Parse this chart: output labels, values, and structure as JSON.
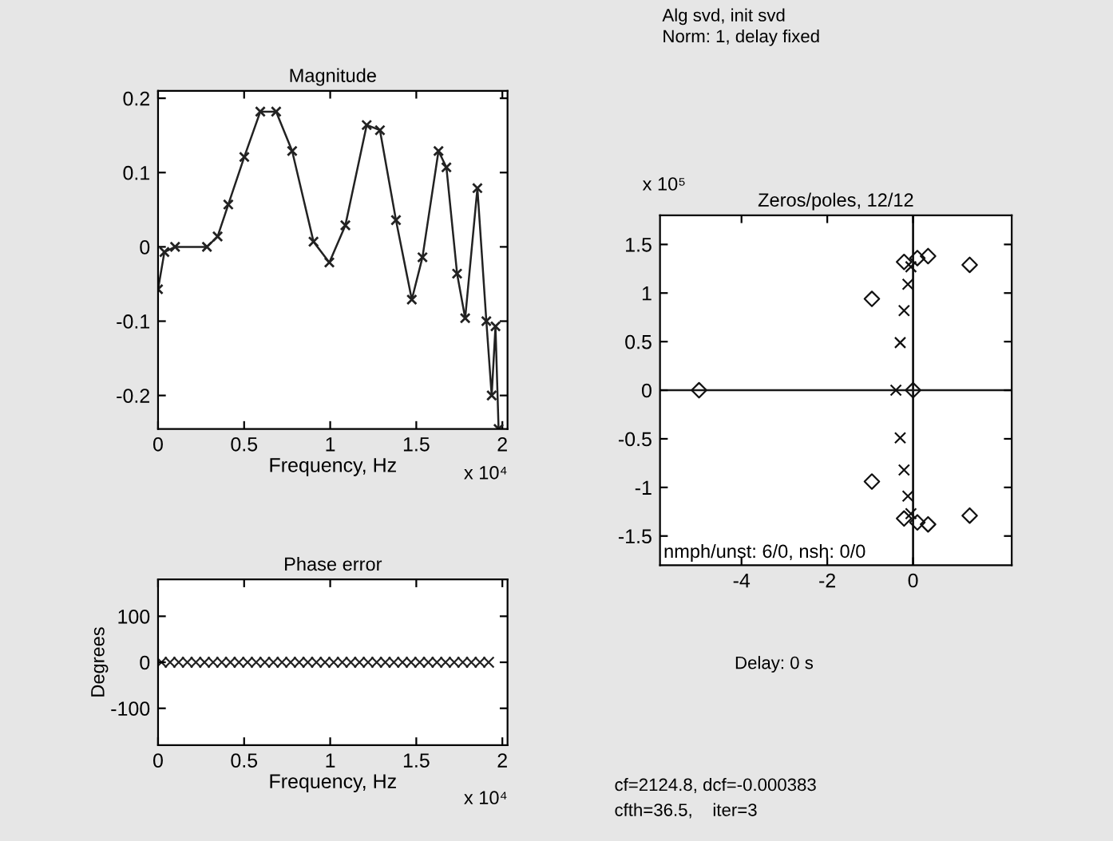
{
  "chart_data": [
    {
      "type": "line",
      "title": "Magnitude",
      "xlabel": "Frequency, Hz",
      "annotations": [
        "x 10⁴"
      ],
      "marker": "cross",
      "grid": false,
      "x": [
        0,
        0.037,
        0.099,
        0.284,
        0.346,
        0.408,
        0.501,
        0.594,
        0.686,
        0.779,
        0.903,
        0.995,
        1.088,
        1.212,
        1.289,
        1.382,
        1.474,
        1.536,
        1.629,
        1.675,
        1.737,
        1.784,
        1.855,
        1.907,
        1.938,
        1.96,
        1.978
      ],
      "series": [
        {
          "color": "#222222",
          "values": [
            -0.057,
            -0.007,
            0,
            0,
            0.014,
            0.057,
            0.121,
            0.182,
            0.182,
            0.129,
            0.007,
            -0.021,
            0.029,
            0.164,
            0.157,
            0.036,
            -0.071,
            -0.014,
            0.129,
            0.107,
            -0.036,
            -0.096,
            0.079,
            -0.1,
            -0.2,
            -0.107,
            -0.245
          ]
        }
      ],
      "xlim": [
        0,
        2.03
      ],
      "xticks": [
        0,
        0.5,
        1,
        1.5,
        2
      ],
      "ylim": [
        -0.245,
        0.21
      ],
      "yticks": [
        -0.2,
        -0.1,
        0,
        0.1,
        0.2
      ]
    },
    {
      "type": "scatter",
      "title": "Phase error",
      "xlabel": "Frequency, Hz",
      "ylabel": "Degrees",
      "annotations": [
        "x 10⁴"
      ],
      "marker": "cross",
      "grid": false,
      "x": [
        0.02,
        0.07,
        0.12,
        0.17,
        0.22,
        0.27,
        0.32,
        0.37,
        0.42,
        0.47,
        0.52,
        0.57,
        0.62,
        0.67,
        0.72,
        0.77,
        0.82,
        0.87,
        0.92,
        0.97,
        1.02,
        1.07,
        1.12,
        1.17,
        1.22,
        1.27,
        1.32,
        1.37,
        1.42,
        1.47,
        1.52,
        1.57,
        1.62,
        1.67,
        1.72,
        1.77,
        1.82,
        1.87,
        1.92
      ],
      "series": [
        {
          "color": "#222222",
          "values": [
            0,
            0,
            0,
            0,
            0,
            0,
            0,
            0,
            0,
            0,
            0,
            0,
            0,
            0,
            0,
            0,
            0,
            0,
            0,
            0,
            0,
            0,
            0,
            0,
            0,
            0,
            0,
            0,
            0,
            0,
            0,
            0,
            0,
            0,
            0,
            0,
            0,
            0,
            0
          ]
        }
      ],
      "xlim": [
        0,
        2.03
      ],
      "xticks": [
        0,
        0.5,
        1,
        1.5,
        2
      ],
      "ylim": [
        -180,
        180
      ],
      "yticks": [
        -100,
        0,
        100
      ]
    },
    {
      "type": "scatter",
      "title": "Zeros/poles, 12/12",
      "annotations": [
        "x 10⁵",
        "nmph/unst: 6/0, nsh: 0/0"
      ],
      "grid": false,
      "series": [
        {
          "marker": "diamond",
          "color": "#111111",
          "x": [
            -4.99,
            -0.96,
            -0.21,
            0.1,
            0.35,
            1.32,
            0,
            -0.96,
            -0.21,
            0.1,
            0.35,
            1.32
          ],
          "values": [
            0,
            0.94,
            1.32,
            1.36,
            1.38,
            1.29,
            0,
            -0.94,
            -1.32,
            -1.36,
            -1.38,
            -1.29
          ]
        },
        {
          "marker": "cross",
          "color": "#111111",
          "x": [
            -0.05,
            -0.12,
            -0.21,
            -0.3,
            -0.4,
            -0.3,
            -0.21,
            -0.12,
            -0.05
          ],
          "values": [
            1.27,
            1.09,
            0.82,
            0.49,
            0,
            -0.49,
            -0.82,
            -1.09,
            -1.27
          ]
        }
      ],
      "ref_lines": [
        {
          "axis": "x",
          "value": 0,
          "color": "#000000"
        },
        {
          "axis": "y",
          "value": 0,
          "color": "#1a1a1a"
        }
      ],
      "xlim": [
        -5.9,
        2.3
      ],
      "xticks": [
        -4,
        -2,
        0
      ],
      "ylim": [
        -1.8,
        1.8
      ],
      "yticks": [
        -1.5,
        -1,
        -0.5,
        0,
        0.5,
        1,
        1.5
      ]
    },
    {
      "type": "other",
      "annotations": [
        "Alg svd, init svd",
        "Norm: 1, delay fixed",
        "Delay: 0 s",
        "cf=2124.8, dcf=-0.000383",
        "cfth=36.5,    iter=3"
      ]
    }
  ]
}
